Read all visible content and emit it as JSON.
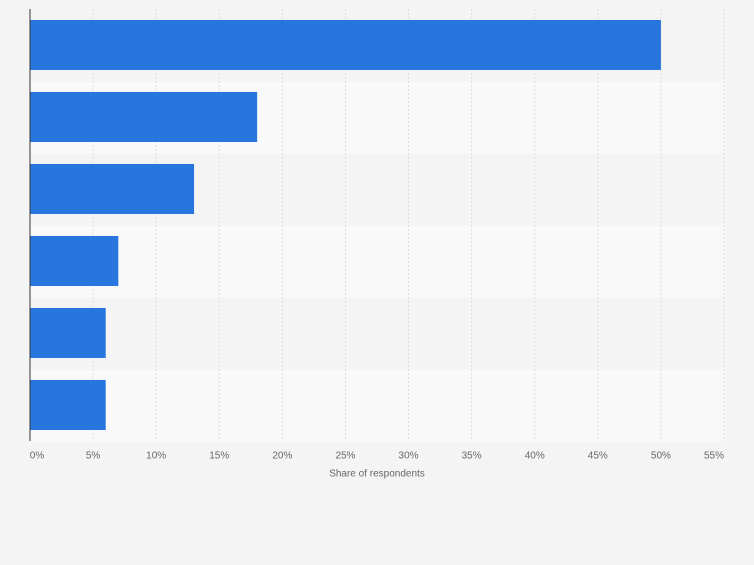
{
  "chart_data": {
    "type": "bar",
    "orientation": "horizontal",
    "x_axis_label": "Share of respondents",
    "categories": [
      null,
      null,
      null,
      null,
      null,
      null
    ],
    "values": [
      50,
      18,
      13,
      7,
      6,
      6
    ],
    "color": "#2876dd",
    "xlim": [
      0,
      55
    ],
    "xticks": [
      {
        "value": 0,
        "label": "0%"
      },
      {
        "value": 5,
        "label": "5%"
      },
      {
        "value": 10,
        "label": "10%"
      },
      {
        "value": 15,
        "label": "15%"
      },
      {
        "value": 20,
        "label": "20%"
      },
      {
        "value": 25,
        "label": "25%"
      },
      {
        "value": 30,
        "label": "30%"
      },
      {
        "value": 35,
        "label": "35%"
      },
      {
        "value": 40,
        "label": "40%"
      },
      {
        "value": 45,
        "label": "45%"
      },
      {
        "value": 50,
        "label": "50%"
      },
      {
        "value": 55,
        "label": "55%"
      }
    ],
    "grid": true
  }
}
